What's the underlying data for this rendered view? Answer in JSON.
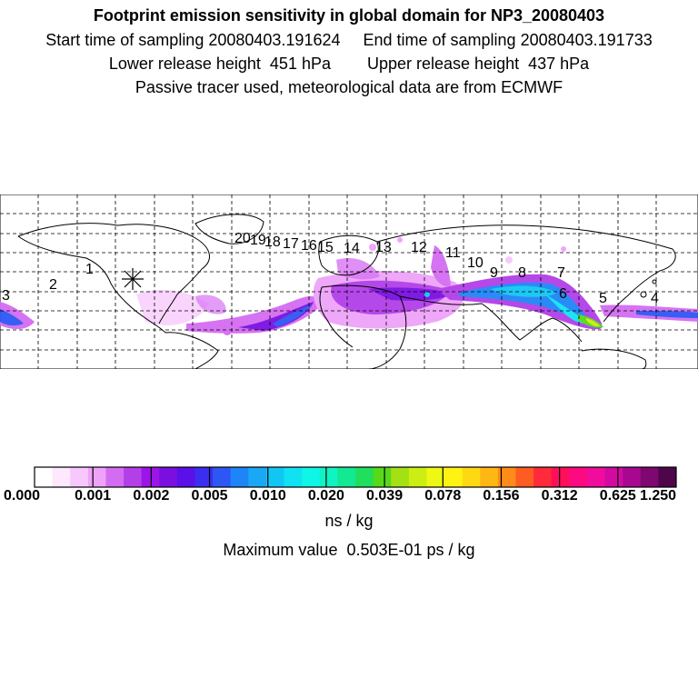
{
  "header": {
    "title": "Footprint emission sensitivity in global domain for NP3_20080403",
    "line1": "Start time of sampling 20080403.191624     End time of sampling 20080403.191733",
    "line2": "Lower release height  451 hPa        Upper release height  437 hPa",
    "line3": "Passive tracer used, meteorological data are from ECMWF"
  },
  "map": {
    "projection": "global lat-lon",
    "grid": "dashed",
    "release_marker": "asterisk",
    "trajectory_labels": [
      "1",
      "2",
      "3",
      "4",
      "5",
      "6",
      "7",
      "8",
      "9",
      "10",
      "11",
      "12",
      "13",
      "14",
      "15",
      "16",
      "17",
      "18",
      "19",
      "20"
    ]
  },
  "colorbar": {
    "tick_labels": [
      "0.000",
      "0.001",
      "0.002",
      "0.005",
      "0.010",
      "0.020",
      "0.039",
      "0.078",
      "0.156",
      "0.312",
      "0.625",
      "1.250"
    ],
    "units": "ns / kg",
    "max_value": "Maximum value  0.503E-01 ps / kg",
    "colors": [
      "#ffffff",
      "#fde8fe",
      "#f7c8fc",
      "#eea3f9",
      "#d46cf2",
      "#b23fe8",
      "#9b14e8",
      "#7a0fe0",
      "#5a10e8",
      "#3b2ef0",
      "#2d57f4",
      "#1e85f6",
      "#1aa8f5",
      "#12c6f4",
      "#11e2f2",
      "#0ff5e6",
      "#10f3c2",
      "#13e893",
      "#20df5c",
      "#58d81a",
      "#a3e014",
      "#cdee12",
      "#eef812",
      "#fff313",
      "#ffd814",
      "#ffb713",
      "#ff8c18",
      "#ff5c22",
      "#ff2a3a",
      "#ff0f5a",
      "#fd0a80",
      "#f00c9c",
      "#d20aa2",
      "#a80890",
      "#7e0770",
      "#4e0549"
    ]
  }
}
